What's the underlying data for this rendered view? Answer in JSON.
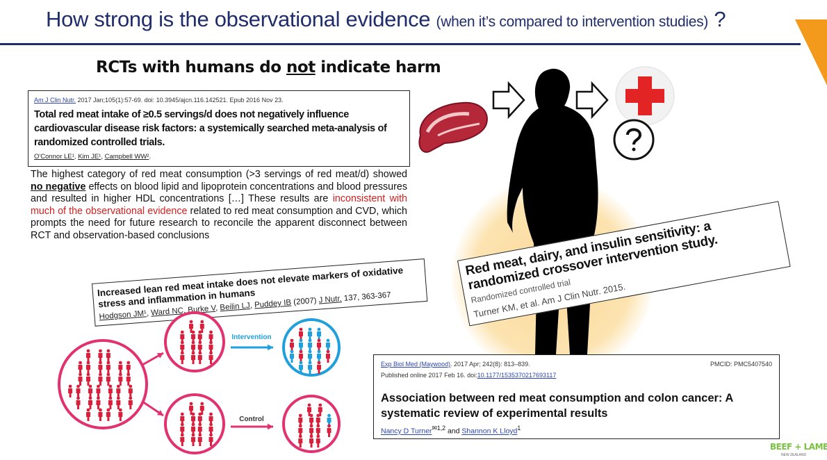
{
  "title": {
    "main": "How strong is the observational evidence",
    "sub": "(when it’s compared to intervention studies)",
    "mark": "?"
  },
  "heading": {
    "pre": "RCTs with humans do ",
    "em": "not",
    "post": " indicate harm"
  },
  "card1": {
    "journal": "Am J Clin Nutr.",
    "meta": " 2017 Jan;105(1):57-69. doi: 10.3945/ajcn.116.142521. Epub 2016 Nov 23.",
    "title": "Total red meat intake of ≥0.5 servings/d does not negatively influence cardiovascular disease risk factors: a systemically searched meta-analysis of randomized controlled trials.",
    "authors": [
      "O'Connor LE¹",
      "Kim JE¹",
      "Campbell WW²"
    ]
  },
  "paragraph": {
    "p1": "The highest category of red meat consumption (>3 servings of red meat/d) showed ",
    "bold": "no negative",
    "p2": " effects on blood lipid and lipoprotein concentrations and blood pressures and resulted in higher HDL concentrations […] These results are ",
    "red": "inconsistent with much of the observational evidence",
    "p3": " related to red meat consumption and CVD, which prompts the need for future research to reconcile the apparent disconnect between RCT and observation-based conclusions"
  },
  "card2": {
    "title": "Increased lean red meat intake does not elevate markers of oxidative stress and inflammation in humans",
    "authors": [
      "Hodgson JM¹",
      "Ward NC",
      "Burke V",
      "Beilin LJ",
      "Puddey IB"
    ],
    "year": " (2007) ",
    "journal": "J Nutr.",
    "pages": " 137, 363-367"
  },
  "card3": {
    "title": "Red meat, dairy, and insulin sensitivity: a randomized crossover intervention study.",
    "type": "Randomized controlled trial",
    "cite": "Turner KM, et al. Am J Clin Nutr. 2015."
  },
  "card4": {
    "journal": "Exp Biol Med (Maywood)",
    "meta": ". 2017 Apr; 242(8): 813–839.",
    "pmcid": "PMCID: PMC5407540",
    "published": "Published online 2017 Feb 16. doi: ",
    "doi": "10.1177/1535370217693117",
    "title": "Association between red meat consumption and colon cancer: A systematic review of experimental results",
    "author1": "Nancy D Turner",
    "sup1": "✉1,2",
    "and": " and ",
    "author2": "Shannon K Lloyd",
    "sup2": "1"
  },
  "diagram": {
    "intervention": "Intervention",
    "control": "Control",
    "colors": {
      "pink": "#e2316f",
      "red": "#d8203c",
      "blue": "#1fa0dc"
    }
  },
  "logo": {
    "text": "BEEF + LAMB",
    "sub": "NEW ZEALAND"
  },
  "colors": {
    "title": "#1f2d6b",
    "accent": "#f39a1c",
    "red": "#d42020"
  }
}
